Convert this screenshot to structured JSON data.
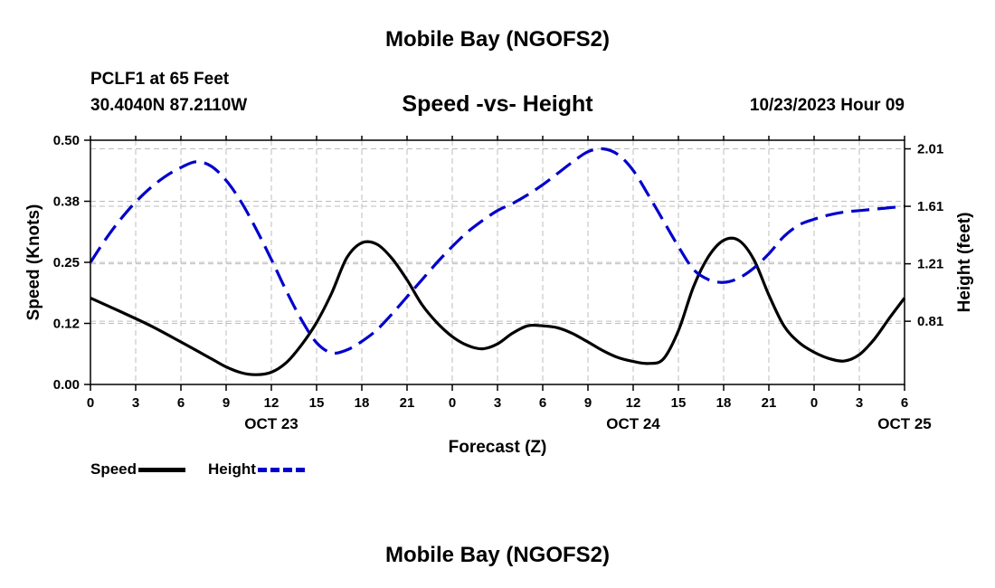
{
  "header": {
    "title": "Mobile Bay (NGOFS2)",
    "station": "PCLF1 at 65 Feet",
    "coords": "30.4040N  87.2110W",
    "subtitle": "Speed -vs- Height",
    "timestamp": "10/23/2023 Hour 09"
  },
  "footer": {
    "title": "Mobile Bay (NGOFS2)"
  },
  "legend": {
    "speed_label": "Speed",
    "height_label": "Height",
    "speed_color": "#000000",
    "height_color": "#0000cc"
  },
  "chart_data": {
    "type": "line",
    "title": "Speed -vs- Height",
    "xlabel": "Forecast (Z)",
    "ylabel": "Speed (Knots)",
    "y2label": "Height (feet)",
    "x_ticks": [
      "0",
      "3",
      "6",
      "9",
      "12",
      "15",
      "18",
      "21",
      "0",
      "3",
      "6",
      "9",
      "12",
      "15",
      "18",
      "21",
      "0",
      "3",
      "6"
    ],
    "x_day_labels": [
      {
        "at_hour": 12,
        "label": "OCT 23"
      },
      {
        "at_hour": 36,
        "label": "OCT 24"
      },
      {
        "at_hour": 60,
        "label": "OCT 25"
      }
    ],
    "xlim": [
      0,
      54
    ],
    "ylim": [
      0.0,
      0.5
    ],
    "y_ticks": [
      "0.00",
      "0.12",
      "0.25",
      "0.38",
      "0.50"
    ],
    "y2lim": [
      0.37,
      2.07
    ],
    "y2_ticks": [
      "0.81",
      "1.21",
      "1.61",
      "2.01"
    ],
    "grid": true,
    "legend_position": "bottom-left",
    "series": [
      {
        "name": "Speed",
        "axis": "left",
        "color": "#000000",
        "dash": "solid",
        "x": [
          0,
          2,
          4,
          6,
          8,
          9,
          10,
          11,
          12,
          13,
          14,
          15,
          16,
          17,
          18,
          19,
          20,
          21,
          22,
          23,
          24,
          25,
          26,
          27,
          28,
          29,
          30,
          31,
          32,
          33,
          34,
          35,
          36,
          37,
          38,
          39,
          40,
          41,
          42,
          43,
          44,
          45,
          46,
          47,
          48,
          49,
          50,
          51,
          52,
          53,
          54
        ],
        "y": [
          0.177,
          0.149,
          0.12,
          0.087,
          0.053,
          0.036,
          0.024,
          0.02,
          0.025,
          0.045,
          0.081,
          0.127,
          0.187,
          0.259,
          0.29,
          0.287,
          0.258,
          0.214,
          0.163,
          0.126,
          0.098,
          0.08,
          0.073,
          0.083,
          0.105,
          0.12,
          0.12,
          0.116,
          0.104,
          0.087,
          0.069,
          0.055,
          0.047,
          0.043,
          0.052,
          0.11,
          0.2,
          0.262,
          0.295,
          0.295,
          0.256,
          0.183,
          0.12,
          0.086,
          0.066,
          0.053,
          0.048,
          0.061,
          0.093,
          0.136,
          0.177
        ]
      },
      {
        "name": "Height",
        "axis": "right",
        "color": "#0000cc",
        "dash": "dashed",
        "x": [
          0,
          1,
          2,
          3,
          4,
          5,
          6,
          7,
          8,
          9,
          10,
          11,
          12,
          13,
          14,
          15,
          16,
          17,
          18,
          19,
          20,
          21,
          22,
          23,
          24,
          25,
          26,
          27,
          28,
          29,
          30,
          31,
          32,
          33,
          34,
          35,
          36,
          37,
          38,
          39,
          40,
          41,
          42,
          43,
          44,
          45,
          46,
          47,
          48,
          49,
          50,
          51,
          52,
          53,
          54
        ],
        "y": [
          1.22,
          1.38,
          1.52,
          1.64,
          1.74,
          1.82,
          1.88,
          1.92,
          1.89,
          1.79,
          1.64,
          1.45,
          1.24,
          1.02,
          0.82,
          0.66,
          0.59,
          0.61,
          0.67,
          0.75,
          0.86,
          0.98,
          1.1,
          1.22,
          1.33,
          1.43,
          1.51,
          1.58,
          1.63,
          1.69,
          1.76,
          1.84,
          1.92,
          1.99,
          2.01,
          1.97,
          1.86,
          1.69,
          1.51,
          1.33,
          1.17,
          1.1,
          1.08,
          1.11,
          1.18,
          1.28,
          1.4,
          1.48,
          1.52,
          1.55,
          1.57,
          1.58,
          1.59,
          1.6,
          1.61
        ]
      }
    ]
  }
}
